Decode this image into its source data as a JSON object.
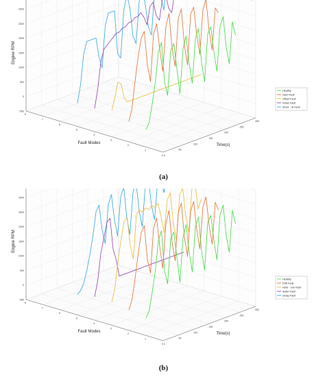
{
  "chart_data": [
    {
      "type": "line",
      "panel_label": "(a)",
      "title": "",
      "xlabel": "Time(s)",
      "ylabel": "Fault Modes",
      "zlabel": "Engine RPM",
      "xlim": [
        0,
        300
      ],
      "ylim": [
        0,
        8
      ],
      "zlim": [
        -500,
        3500
      ],
      "x_ticks": [
        "0",
        "50",
        "100",
        "150",
        "200",
        "250",
        "300"
      ],
      "y_ticks": [
        "0",
        "1",
        "2",
        "3",
        "4",
        "5",
        "6",
        "7",
        "8"
      ],
      "z_ticks": [
        "-500",
        "0",
        "500",
        "1000",
        "1500",
        "2000",
        "2500",
        "3000",
        "3500"
      ],
      "grid": true,
      "legend_position": "right",
      "colors": [
        "#3ad93a",
        "#e06a2a",
        "#e8b830",
        "#8a3aa8",
        "#29a3dc"
      ],
      "series": [
        {
          "name": "Healthy",
          "fault_mode": 1,
          "x": [
            0,
            10,
            20,
            30,
            40,
            50,
            60,
            70,
            80,
            90,
            100,
            110,
            120,
            130,
            140,
            150,
            160,
            170,
            180,
            190,
            200,
            210,
            220,
            230,
            240,
            250,
            260,
            270,
            280,
            290
          ],
          "y": [
            100,
            300,
            900,
            1600,
            2600,
            2900,
            1500,
            1000,
            2500,
            2700,
            1800,
            900,
            2400,
            2800,
            1800,
            1100,
            2600,
            2900,
            1700,
            1000,
            2600,
            2800,
            1900,
            1200,
            2700,
            3000,
            1900,
            1300,
            2700,
            2200
          ]
        },
        {
          "name": "Gain Fault",
          "fault_mode": 2,
          "x": [
            0,
            10,
            20,
            30,
            40,
            50,
            60,
            70,
            80,
            90,
            100,
            110,
            120,
            130,
            140,
            150,
            160,
            170,
            180,
            190,
            200,
            210,
            220,
            230,
            240,
            250,
            260,
            270,
            280,
            290
          ],
          "y": [
            200,
            600,
            1500,
            2300,
            2900,
            3100,
            1900,
            1300,
            2900,
            3200,
            2300,
            1500,
            3000,
            3400,
            2200,
            1500,
            3100,
            3400,
            2100,
            1400,
            3100,
            3300,
            2300,
            1600,
            3100,
            3400,
            2300,
            1600,
            3000,
            2800
          ]
        },
        {
          "name": "Offset Fault",
          "fault_mode": 3,
          "x": [
            0,
            10,
            20,
            30,
            40,
            50,
            60,
            70,
            80,
            90,
            100,
            110,
            120,
            130,
            140,
            150,
            160,
            170,
            180,
            190,
            200,
            210,
            220,
            230,
            240,
            250,
            260,
            270,
            280,
            290
          ],
          "y": [
            400,
            800,
            1300,
            1200,
            700,
            500,
            500,
            500,
            500,
            500,
            500,
            500,
            500,
            500,
            500,
            500,
            500,
            500,
            500,
            500,
            500,
            500,
            500,
            500,
            500,
            500,
            500,
            500,
            500,
            500
          ]
        },
        {
          "name": "Noise Fault",
          "fault_mode": 4,
          "x": [
            0,
            10,
            20,
            30,
            40,
            50,
            60,
            70,
            80,
            90,
            100,
            110,
            120,
            130,
            140,
            150,
            160,
            170,
            180,
            190,
            200,
            210,
            220,
            230,
            240,
            250,
            260,
            270,
            280,
            290
          ],
          "y": [
            300,
            900,
            1800,
            2200,
            2300,
            2400,
            2500,
            2600,
            2600,
            2700,
            2700,
            2800,
            2800,
            2900,
            2900,
            3000,
            2800,
            2500,
            3100,
            3200,
            2700,
            2500,
            3200,
            3300,
            2800,
            2600,
            3300,
            3200,
            3300,
            3300
          ]
        },
        {
          "name": "Stuck - at Fault",
          "fault_mode": 5,
          "x": [
            0,
            10,
            20,
            30,
            40,
            50,
            60,
            70,
            80,
            90,
            100,
            110,
            120,
            130,
            140,
            150,
            160,
            170,
            180,
            190,
            200,
            210,
            220,
            230,
            240,
            250,
            260,
            270,
            280,
            290
          ],
          "y": [
            300,
            900,
            1900,
            2300,
            2300,
            2300,
            2300,
            1600,
            1200,
            2600,
            3000,
            3000,
            3000,
            1500,
            1300,
            2900,
            3400,
            2900,
            1900,
            1600,
            3000,
            3400,
            2800,
            2000,
            1700,
            3200,
            3500,
            2900,
            2400,
            3400
          ]
        }
      ]
    },
    {
      "type": "line",
      "panel_label": "(b)",
      "title": "",
      "xlabel": "Time(s)",
      "ylabel": "Fault Modes",
      "zlabel": "Engine RPM",
      "xlim": [
        0,
        300
      ],
      "ylim": [
        0,
        8
      ],
      "zlim": [
        -500,
        3500
      ],
      "x_ticks": [
        "0",
        "50",
        "100",
        "150",
        "200",
        "250",
        "300"
      ],
      "y_ticks": [
        "0",
        "1",
        "2",
        "3",
        "4",
        "5",
        "6",
        "7",
        "8"
      ],
      "z_ticks": [
        "-500",
        "0",
        "500",
        "1000",
        "1500",
        "2000",
        "2500",
        "3000",
        "3500"
      ],
      "grid": true,
      "legend_position": "right",
      "colors": [
        "#3ad93a",
        "#e06a2a",
        "#e8b830",
        "#8a3aa8",
        "#29a3dc"
      ],
      "series": [
        {
          "name": "Healthy",
          "fault_mode": 1,
          "x": [
            0,
            10,
            20,
            30,
            40,
            50,
            60,
            70,
            80,
            90,
            100,
            110,
            120,
            130,
            140,
            150,
            160,
            170,
            180,
            190,
            200,
            210,
            220,
            230,
            240,
            250,
            260,
            270,
            280,
            290
          ],
          "y": [
            100,
            300,
            900,
            1600,
            2600,
            2900,
            1500,
            1000,
            2500,
            2700,
            1800,
            900,
            2400,
            2800,
            1800,
            1100,
            2600,
            2900,
            1700,
            1000,
            2600,
            2800,
            1900,
            1200,
            2700,
            3000,
            1900,
            1300,
            2700,
            2200
          ]
        },
        {
          "name": "Drift Fault",
          "fault_mode": 2,
          "x": [
            0,
            10,
            20,
            30,
            40,
            50,
            60,
            70,
            80,
            90,
            100,
            110,
            120,
            130,
            140,
            150,
            160,
            170,
            180,
            190,
            200,
            210,
            220,
            230,
            240,
            250,
            260,
            270,
            280,
            290
          ],
          "y": [
            200,
            500,
            1200,
            2000,
            2700,
            2900,
            1700,
            1200,
            2700,
            3000,
            2000,
            1200,
            2700,
            3100,
            2000,
            1300,
            2900,
            3200,
            2000,
            1300,
            2800,
            3100,
            2100,
            1400,
            2800,
            3100,
            2100,
            1400,
            2800,
            2500
          ]
        },
        {
          "name": "Hard - over fault",
          "fault_mode": 3,
          "x": [
            0,
            10,
            20,
            30,
            40,
            50,
            60,
            70,
            80,
            90,
            100,
            110,
            120,
            130,
            140,
            150,
            160,
            170,
            180,
            190,
            200,
            210,
            220,
            230,
            240,
            250,
            260,
            270,
            280,
            290
          ],
          "y": [
            300,
            700,
            1600,
            2300,
            2900,
            3000,
            2000,
            1500,
            3000,
            3100,
            3000,
            3100,
            3000,
            3100,
            3000,
            3100,
            2600,
            2000,
            3100,
            3300,
            2200,
            1600,
            3100,
            3300,
            2300,
            1700,
            3200,
            3300,
            2400,
            2700
          ]
        },
        {
          "name": "Spike Fault",
          "fault_mode": 4,
          "x": [
            0,
            10,
            20,
            30,
            40,
            50,
            60,
            70,
            80,
            90,
            100,
            110,
            120,
            130,
            140,
            150,
            160,
            170,
            180,
            190,
            200,
            210,
            220,
            230,
            240,
            250,
            260,
            270,
            280,
            290
          ],
          "y": [
            300,
            800,
            1700,
            2200,
            2700,
            2800,
            1700,
            1300,
            700,
            700,
            700,
            700,
            700,
            700,
            700,
            700,
            700,
            700,
            700,
            700,
            700,
            700,
            700,
            700,
            700,
            700,
            700,
            700,
            700,
            700
          ]
        },
        {
          "name": "Delay Fault",
          "fault_mode": 5,
          "x": [
            0,
            10,
            20,
            30,
            40,
            50,
            60,
            70,
            80,
            90,
            100,
            110,
            120,
            130,
            140,
            150,
            160,
            170,
            180,
            190,
            200,
            210,
            220,
            230,
            240,
            250,
            260,
            270,
            280,
            290
          ],
          "y": [
            200,
            300,
            500,
            900,
            1400,
            2000,
            2800,
            3000,
            2100,
            1600,
            2900,
            3200,
            2300,
            1700,
            3000,
            3300,
            2200,
            1600,
            3000,
            3300,
            2300,
            1700,
            3100,
            3300,
            2300,
            1800,
            3100,
            3200,
            2600,
            3000
          ]
        }
      ]
    }
  ]
}
